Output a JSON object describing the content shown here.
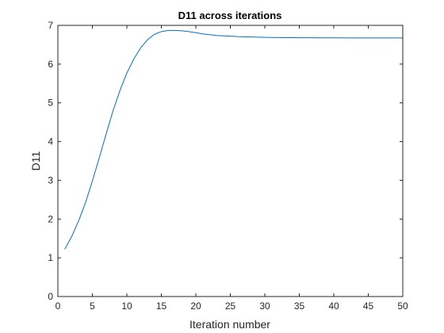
{
  "chart_data": {
    "type": "line",
    "title": "D11 across iterations",
    "xlabel": "Iteration number",
    "ylabel": "D11",
    "xlim": [
      0,
      50
    ],
    "ylim": [
      0,
      7
    ],
    "xticks": [
      "0",
      "5",
      "10",
      "15",
      "20",
      "25",
      "30",
      "35",
      "40",
      "45",
      "50"
    ],
    "yticks": [
      "0",
      "1",
      "2",
      "3",
      "4",
      "5",
      "6",
      "7"
    ],
    "grid": false,
    "legend": "none",
    "line_color": "#0072BD",
    "series": [
      {
        "x": [
          1,
          2,
          3,
          4,
          5,
          6,
          7,
          8,
          9,
          10,
          11,
          12,
          13,
          14,
          15,
          16,
          17,
          18,
          19,
          20,
          21,
          22,
          23,
          24,
          25,
          26,
          27,
          28,
          29,
          30,
          31,
          32,
          33,
          34,
          35,
          36,
          37,
          38,
          39,
          40,
          41,
          42,
          43,
          44,
          45,
          46,
          47,
          48,
          49,
          50
        ],
        "values": [
          1.22,
          1.55,
          1.95,
          2.42,
          2.98,
          3.58,
          4.2,
          4.8,
          5.32,
          5.77,
          6.13,
          6.42,
          6.63,
          6.77,
          6.84,
          6.87,
          6.87,
          6.86,
          6.84,
          6.81,
          6.78,
          6.76,
          6.74,
          6.73,
          6.72,
          6.71,
          6.705,
          6.7,
          6.695,
          6.69,
          6.688,
          6.686,
          6.684,
          6.682,
          6.681,
          6.68,
          6.679,
          6.678,
          6.678,
          6.677,
          6.677,
          6.676,
          6.676,
          6.676,
          6.675,
          6.675,
          6.675,
          6.675,
          6.675,
          6.675
        ]
      },
      {
        "x": [
          1,
          50
        ],
        "values": [
          0,
          0
        ]
      }
    ]
  }
}
